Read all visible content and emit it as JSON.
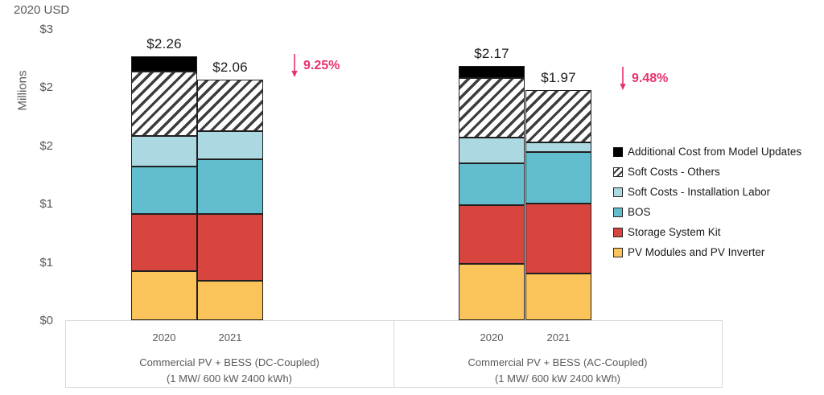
{
  "chart_data": {
    "type": "bar",
    "stacked": true,
    "title": "2020 USD",
    "ylabel": "Millions",
    "xlabel": "",
    "unit": "USD millions (2020 USD)",
    "ylim": [
      0,
      2.75
    ],
    "grid": false,
    "legend_position": "right",
    "y_ticks": [
      {
        "value": 2.5,
        "label": "$3"
      },
      {
        "value": 2.0,
        "label": "$2"
      },
      {
        "value": 1.5,
        "label": "$2"
      },
      {
        "value": 1.0,
        "label": "$1"
      },
      {
        "value": 0.5,
        "label": "$1"
      },
      {
        "value": 0.0,
        "label": "$0"
      }
    ],
    "series": [
      {
        "key": "pv",
        "name": "PV Modules and PV Inverter",
        "color": "#FAC45B",
        "swatch": "solid"
      },
      {
        "key": "storage",
        "name": "Storage System Kit",
        "color": "#D8453E",
        "swatch": "solid"
      },
      {
        "key": "bos",
        "name": "BOS",
        "color": "#62BECF",
        "swatch": "solid"
      },
      {
        "key": "labor",
        "name": "Soft Costs - Installation Labor",
        "color": "#ACD8E2",
        "swatch": "solid"
      },
      {
        "key": "soft_other",
        "name": "Soft Costs - Others",
        "color": "hatch",
        "swatch": "hatch"
      },
      {
        "key": "additional",
        "name": "Additional Cost from Model Updates",
        "color": "#000000",
        "swatch": "solid"
      }
    ],
    "groups": [
      {
        "id": "dc",
        "label": "Commercial PV + BESS (DC-Coupled)",
        "sublabel": "(1 MW/ 600 kW 2400 kWh)",
        "change": "9.25%",
        "change_direction": "down",
        "bars": [
          {
            "year": "2020",
            "total": 2.26,
            "total_label": "$2.26",
            "values": [
              0.42,
              0.49,
              0.41,
              0.26,
              0.55,
              0.13
            ]
          },
          {
            "year": "2021",
            "total": 2.06,
            "total_label": "$2.06",
            "values": [
              0.34,
              0.57,
              0.47,
              0.24,
              0.44,
              0
            ]
          }
        ]
      },
      {
        "id": "ac",
        "label": "Commercial PV + BESS (AC-Coupled)",
        "sublabel": "(1 MW/ 600 kW 2400 kWh)",
        "change": "9.48%",
        "change_direction": "down",
        "bars": [
          {
            "year": "2020",
            "total": 2.17,
            "total_label": "$2.17",
            "values": [
              0.48,
              0.5,
              0.36,
              0.22,
              0.51,
              0.1
            ]
          },
          {
            "year": "2021",
            "total": 1.97,
            "total_label": "$1.97",
            "values": [
              0.4,
              0.6,
              0.44,
              0.08,
              0.45,
              0
            ]
          }
        ]
      }
    ],
    "colors": {
      "accent_change": "#E8316B",
      "axis_text": "#595959",
      "segment_border": "#1F1F1F",
      "axis_box_border": "#D9D9D9",
      "hatch_stripe": "#3D3D3D",
      "hatch_background": "#FFFFFF"
    },
    "icons": {
      "change_indicator": "down-arrow-icon"
    }
  }
}
